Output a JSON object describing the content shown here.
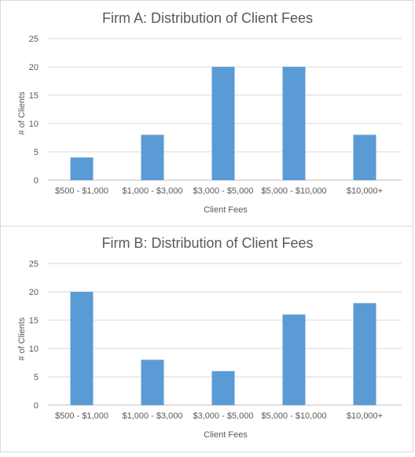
{
  "chart_data": [
    {
      "type": "bar",
      "title": "Firm A: Distribution of Client Fees",
      "xlabel": "Client Fees",
      "ylabel": "# of Clients",
      "categories": [
        "$500 - $1,000",
        "$1,000 - $3,000",
        "$3,000 - $5,000",
        "$5,000 - $10,000",
        "$10,000+"
      ],
      "values": [
        4,
        8,
        20,
        20,
        8
      ],
      "ylim": [
        0,
        25
      ],
      "yticks": [
        "0",
        "5",
        "10",
        "15",
        "20",
        "25"
      ],
      "grid": true,
      "bar_color": "#5b9bd5"
    },
    {
      "type": "bar",
      "title": "Firm B: Distribution of Client Fees",
      "xlabel": "Client Fees",
      "ylabel": "# of Clients",
      "categories": [
        "$500 - $1,000",
        "$1,000 - $3,000",
        "$3,000 - $5,000",
        "$5,000 - $10,000",
        "$10,000+"
      ],
      "values": [
        20,
        8,
        6,
        16,
        18
      ],
      "ylim": [
        0,
        25
      ],
      "yticks": [
        "0",
        "5",
        "10",
        "15",
        "20",
        "25"
      ],
      "grid": true,
      "bar_color": "#5b9bd5"
    }
  ]
}
